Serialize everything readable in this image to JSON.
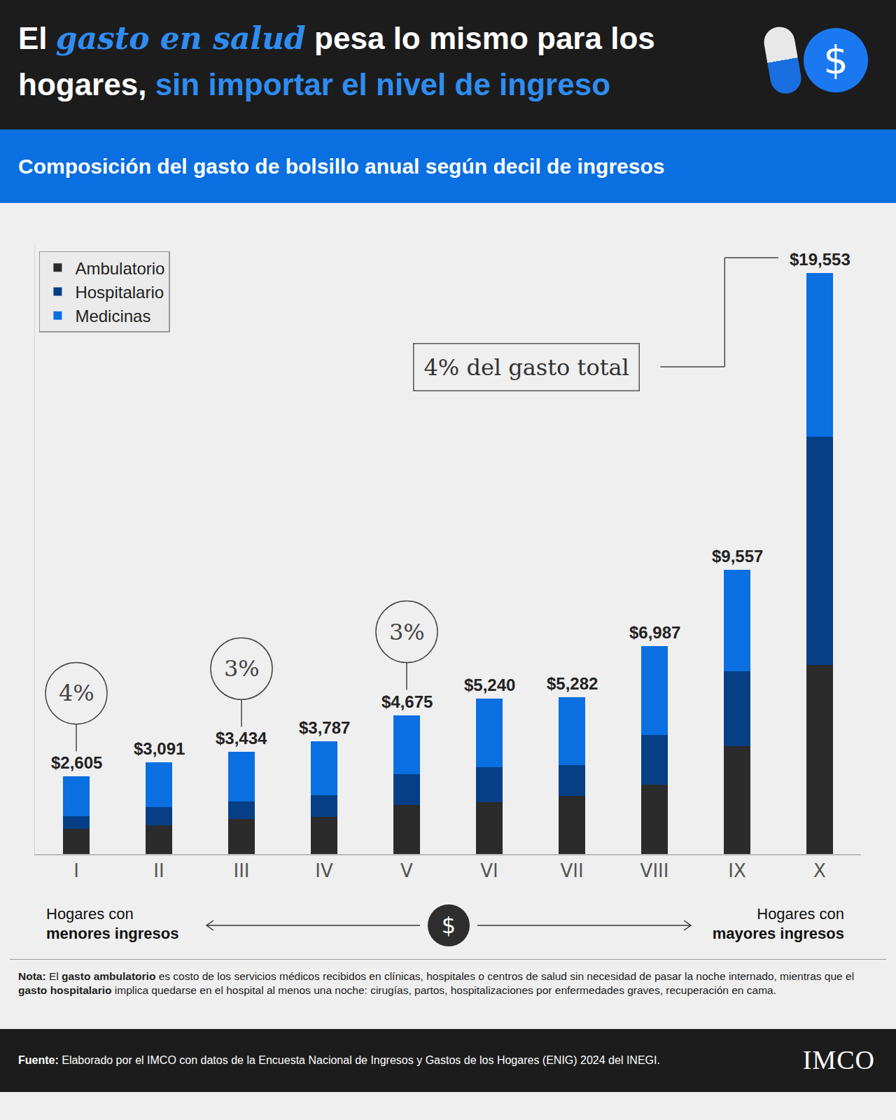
{
  "header": {
    "title_lines": [
      [
        {
          "text": "El ",
          "style": "plain"
        },
        {
          "text": "gasto en salud",
          "style": "italic_blue"
        },
        {
          "text": " pesa lo mismo para los",
          "style": "plain"
        }
      ],
      [
        {
          "text": "hogares, ",
          "style": "plain"
        },
        {
          "text": "sin importar el nivel de ingreso",
          "style": "blue"
        }
      ]
    ],
    "icon": "$"
  },
  "chart_data": {
    "type": "bar",
    "stacked": true,
    "title": "Composición del gasto de bolsillo anual según decil de ingresos",
    "categories": [
      "I",
      "II",
      "III",
      "IV",
      "V",
      "VI",
      "VII",
      "VIII",
      "IX",
      "X"
    ],
    "series": [
      {
        "name": "Ambulatorio",
        "color": "#2b2b2b",
        "values": [
          852,
          964,
          1188,
          1256,
          1659,
          1749,
          1951,
          2332,
          3632,
          6367
        ]
      },
      {
        "name": "Hospitalario",
        "color": "#063f85",
        "values": [
          426,
          605,
          583,
          717,
          1031,
          1166,
          1031,
          1682,
          2511,
          7668
        ]
      },
      {
        "name": "Medicinas",
        "color": "#0a6fe0",
        "values": [
          1327,
          1522,
          1663,
          1814,
          1985,
          2325,
          2300,
          2973,
          3414,
          5518
        ]
      }
    ],
    "totals": [
      2605,
      3091,
      3434,
      3787,
      4675,
      5240,
      5282,
      6987,
      9557,
      19553
    ],
    "total_labels": [
      "$2,605",
      "$3,091",
      "$3,434",
      "$3,787",
      "$4,675",
      "$5,240",
      "$5,282",
      "$6,987",
      "$9,557",
      "$19,553"
    ],
    "ylim": [
      0,
      20500
    ],
    "yticks": [],
    "tick_labels": "x",
    "grid": false,
    "legend": "upper left",
    "annotations": [
      {
        "text": "4%",
        "category": "I"
      },
      {
        "text": "3%",
        "category": "III"
      },
      {
        "text": "3%",
        "category": "V"
      },
      {
        "text": "4% del gasto total",
        "category": "X"
      }
    ]
  },
  "axis_note": {
    "left": [
      "Hogares con",
      "menores ingresos"
    ],
    "right": [
      "Hogares con",
      "mayores ingresos"
    ],
    "icon": "$"
  },
  "note": [
    {
      "text": "Nota:",
      "bold": true
    },
    {
      "text": " El ",
      "bold": false
    },
    {
      "text": "gasto ambulatorio",
      "bold": true
    },
    {
      "text": " es costo de los servicios médicos recibidos en clínicas, hospitales o centros de salud sin necesidad de pasar la noche internado, mientras que el ",
      "bold": false
    },
    {
      "text": "gasto hospitalario",
      "bold": true
    },
    {
      "text": " implica quedarse en el hospital al menos una noche: cirugías, partos, hospitalizaciones por enfermedades graves, recuperación en cama.",
      "bold": false
    }
  ],
  "source": [
    {
      "text": "Fuente:",
      "bold": true
    },
    {
      "text": " Elaborado por el IMCO con datos de la Encuesta Nacional de Ingresos y Gastos de los Hogares (ENIG) 2024 del INEGI.",
      "bold": false
    }
  ],
  "logo": "IMCO"
}
